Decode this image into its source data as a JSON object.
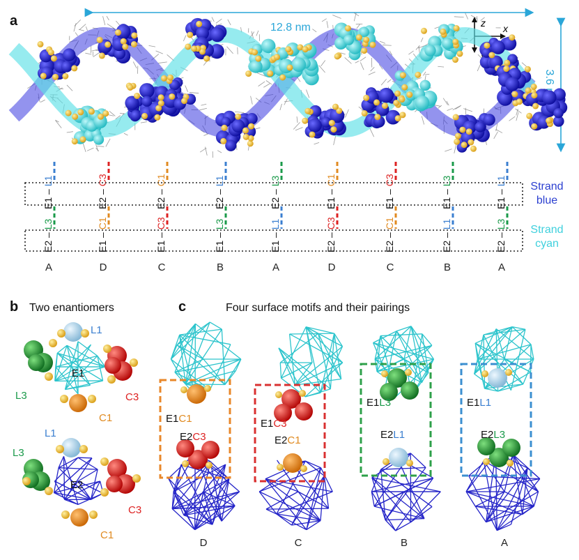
{
  "panel_a": {
    "letter": "a",
    "width_label": "12.8 nm",
    "height_label": "3.6 nm",
    "axes": {
      "z": "z",
      "x": "x",
      "y": "y"
    },
    "strand_blue": [
      "Strand",
      "blue"
    ],
    "strand_cyan": [
      "Strand",
      "cyan"
    ],
    "sequence": [
      "A",
      "D",
      "C",
      "B",
      "A",
      "D",
      "C",
      "B",
      "A"
    ],
    "columns": [
      {
        "top": [
          "E1",
          "–",
          "L1"
        ],
        "top_colors": [
          "#111",
          "#111",
          "#3b7fd0"
        ],
        "bottom": [
          "E2",
          "–",
          "L3"
        ],
        "bottom_colors": [
          "#111",
          "#111",
          "#1a9a4a"
        ]
      },
      {
        "top": [
          "E2",
          "–",
          "C3"
        ],
        "top_colors": [
          "#111",
          "#111",
          "#d22"
        ],
        "bottom": [
          "E1",
          "–",
          "C1"
        ],
        "bottom_colors": [
          "#111",
          "#111",
          "#e08a20"
        ]
      },
      {
        "top": [
          "E2",
          "–",
          "C1"
        ],
        "top_colors": [
          "#111",
          "#111",
          "#e08a20"
        ],
        "bottom": [
          "E1",
          "–",
          "C3"
        ],
        "bottom_colors": [
          "#111",
          "#111",
          "#d22"
        ]
      },
      {
        "top": [
          "E2",
          "–",
          "L1"
        ],
        "top_colors": [
          "#111",
          "#111",
          "#3b7fd0"
        ],
        "bottom": [
          "E1",
          "–",
          "L3"
        ],
        "bottom_colors": [
          "#111",
          "#111",
          "#1a9a4a"
        ]
      },
      {
        "top": [
          "E2",
          "–",
          "L3"
        ],
        "top_colors": [
          "#111",
          "#111",
          "#1a9a4a"
        ],
        "bottom": [
          "E1",
          "–",
          "L1"
        ],
        "bottom_colors": [
          "#111",
          "#111",
          "#3b7fd0"
        ]
      },
      {
        "top": [
          "E1",
          "–",
          "C1"
        ],
        "top_colors": [
          "#111",
          "#111",
          "#e08a20"
        ],
        "bottom": [
          "E2",
          "–",
          "C3"
        ],
        "bottom_colors": [
          "#111",
          "#111",
          "#d22"
        ]
      },
      {
        "top": [
          "E1",
          "–",
          "C3"
        ],
        "top_colors": [
          "#111",
          "#111",
          "#d22"
        ],
        "bottom": [
          "E2",
          "–",
          "C1"
        ],
        "bottom_colors": [
          "#111",
          "#111",
          "#e08a20"
        ]
      },
      {
        "top": [
          "E1",
          "–",
          "L3"
        ],
        "top_colors": [
          "#111",
          "#111",
          "#1a9a4a"
        ],
        "bottom": [
          "E2",
          "–",
          "L1"
        ],
        "bottom_colors": [
          "#111",
          "#111",
          "#3b7fd0"
        ]
      },
      {
        "top": [
          "E1",
          "–",
          "L1"
        ],
        "top_colors": [
          "#111",
          "#111",
          "#3b7fd0"
        ],
        "bottom": [
          "E2",
          "–",
          "L3"
        ],
        "bottom_colors": [
          "#111",
          "#111",
          "#1a9a4a"
        ]
      }
    ]
  },
  "panel_b": {
    "letter": "b",
    "title": "Two enantiomers",
    "top": {
      "center": "E1",
      "L1": "L1",
      "L3": "L3",
      "C3": "C3",
      "C1": "C1"
    },
    "bottom": {
      "center": "E2",
      "L1": "L1",
      "L3": "L3",
      "C3": "C3",
      "C1": "C1"
    }
  },
  "panel_c": {
    "letter": "c",
    "title": "Four surface motifs and their pairings",
    "motifs": [
      {
        "label": "D",
        "upper": [
          "E1",
          "C1"
        ],
        "lower": [
          "E2",
          "C3"
        ]
      },
      {
        "label": "C",
        "upper": [
          "E1",
          "C3"
        ],
        "lower": [
          "E2",
          "C1"
        ]
      },
      {
        "label": "B",
        "upper": [
          "E1",
          "L3"
        ],
        "lower": [
          "E2",
          "L1"
        ]
      },
      {
        "label": "A",
        "upper": [
          "E1",
          "L1"
        ],
        "lower": [
          "E2",
          "L3"
        ]
      }
    ]
  },
  "colors": {
    "blue_strand": "#1a1ad0",
    "cyan_strand": "#3fd6dd",
    "dimension": "#2aa6d8",
    "gold": "#f0c030",
    "red": "#e01818",
    "orange": "#ee8a10",
    "green": "#1f9a3a",
    "lightblue": "#a9d3ea",
    "label_blue": "#3b7fd0",
    "label_green": "#1a9a4a",
    "label_red": "#d22222",
    "label_orange": "#e08a20"
  }
}
